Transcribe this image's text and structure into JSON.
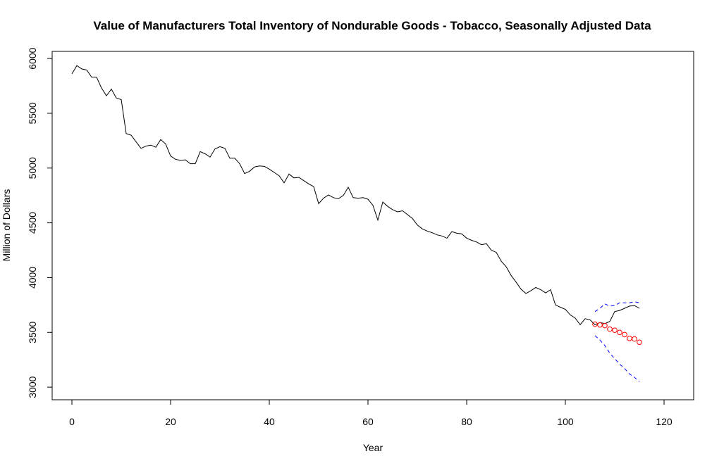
{
  "chart_data": {
    "type": "line",
    "title": "Value of Manufacturers Total Inventory of Nondurable Goods - Tobacco, Seasonally Adjusted Data",
    "xlabel": "Year",
    "ylabel": "Million of Dollars",
    "xlim": [
      -4,
      126
    ],
    "ylim": [
      2885,
      6065
    ],
    "x_ticks": [
      0,
      20,
      40,
      60,
      80,
      100,
      120
    ],
    "x_tick_labels": [
      "0",
      "20",
      "40",
      "60",
      "80",
      "100",
      "120"
    ],
    "y_ticks": [
      3000,
      3500,
      4000,
      4500,
      5000,
      5500,
      6000
    ],
    "y_tick_labels": [
      "3000",
      "3500",
      "4000",
      "4500",
      "5000",
      "5500",
      "6000"
    ],
    "grid": false,
    "colors": {
      "observed": "#000000",
      "forecast": "#ff0000",
      "bounds": "#0000ff"
    },
    "series": [
      {
        "style": "line",
        "x": [
          0,
          1,
          2,
          3,
          4,
          5,
          6,
          7,
          8,
          9,
          10,
          11,
          12,
          13,
          14,
          15,
          16,
          17,
          18,
          19,
          20,
          21,
          22,
          23,
          24,
          25,
          26,
          27,
          28,
          29,
          30,
          31,
          32,
          33,
          34,
          35,
          36,
          37,
          38,
          39,
          40,
          41,
          42,
          43,
          44,
          45,
          46,
          47,
          48,
          49,
          50,
          51,
          52,
          53,
          54,
          55,
          56,
          57,
          58,
          59,
          60,
          61,
          62,
          63,
          64,
          65,
          66,
          67,
          68,
          69,
          70,
          71,
          72,
          73,
          74,
          75,
          76,
          77,
          78,
          79,
          80,
          81,
          82,
          83,
          84,
          85,
          86,
          87,
          88,
          89,
          90,
          91,
          92,
          93,
          94,
          95,
          96,
          97,
          98,
          99,
          100,
          101,
          102,
          103,
          104,
          105,
          106,
          107,
          108,
          109,
          110,
          111,
          112,
          113,
          114,
          115
        ],
        "y": [
          5860,
          5935,
          5905,
          5895,
          5830,
          5830,
          5730,
          5660,
          5720,
          5640,
          5625,
          5315,
          5300,
          5240,
          5180,
          5200,
          5210,
          5190,
          5260,
          5220,
          5110,
          5080,
          5070,
          5075,
          5040,
          5040,
          5150,
          5130,
          5100,
          5175,
          5195,
          5180,
          5090,
          5090,
          5040,
          4950,
          4970,
          5010,
          5020,
          5015,
          4990,
          4960,
          4930,
          4865,
          4945,
          4910,
          4915,
          4885,
          4855,
          4830,
          4675,
          4725,
          4755,
          4730,
          4720,
          4750,
          4825,
          4730,
          4725,
          4730,
          4715,
          4660,
          4525,
          4690,
          4650,
          4620,
          4600,
          4610,
          4575,
          4540,
          4480,
          4445,
          4425,
          4410,
          4390,
          4380,
          4360,
          4420,
          4405,
          4400,
          4360,
          4340,
          4325,
          4300,
          4310,
          4250,
          4230,
          4150,
          4100,
          4020,
          3960,
          3895,
          3855,
          3880,
          3910,
          3890,
          3860,
          3890,
          3750,
          3730,
          3710,
          3660,
          3630,
          3570,
          3625,
          3615,
          3570,
          3590,
          3580,
          3600,
          3690,
          3700,
          3720,
          3740,
          3745,
          3720
        ]
      },
      {
        "style": "points",
        "x": [
          106,
          107,
          108,
          109,
          110,
          111,
          112,
          113,
          114,
          115
        ],
        "y": [
          3575,
          3568,
          3562,
          3530,
          3520,
          3500,
          3480,
          3445,
          3440,
          3410
        ]
      },
      {
        "style": "dashed",
        "x": [
          106,
          107,
          108,
          109,
          110,
          111,
          112,
          113,
          114,
          115
        ],
        "y": [
          3690,
          3720,
          3760,
          3740,
          3745,
          3770,
          3770,
          3770,
          3780,
          3770
        ]
      },
      {
        "style": "dashed",
        "x": [
          106,
          107,
          108,
          109,
          110,
          111,
          112,
          113,
          114,
          115
        ],
        "y": [
          3470,
          3430,
          3380,
          3310,
          3260,
          3210,
          3170,
          3120,
          3090,
          3050
        ]
      }
    ]
  }
}
